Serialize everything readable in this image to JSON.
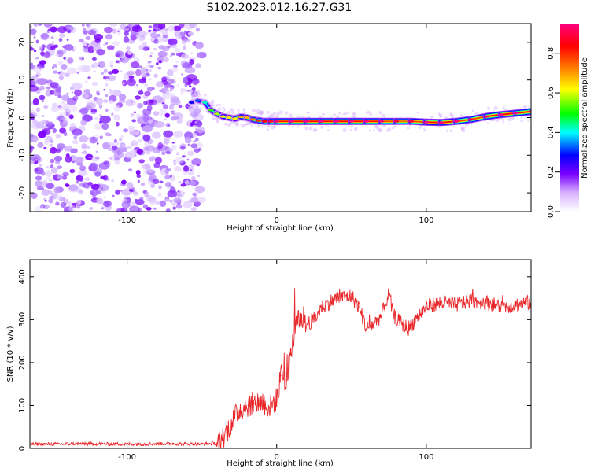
{
  "title": "S102.2023.012.16.27.G31",
  "chart_data": [
    {
      "type": "heatmap",
      "xlabel": "Height of straight line (km)",
      "ylabel": "Frequency (Hz)",
      "xlim": [
        -165,
        170
      ],
      "ylim": [
        -25,
        25
      ],
      "x_ticks": [
        -100,
        0,
        100
      ],
      "y_ticks": [
        -20,
        -10,
        0,
        10,
        20
      ],
      "noise_region": {
        "x_range": [
          -165,
          -50
        ],
        "y_range": [
          -25,
          25
        ]
      },
      "signal_ridge": {
        "x": [
          -57,
          -53,
          -48,
          -44,
          -40,
          -36,
          -32,
          -28,
          -24,
          -20,
          -16,
          -12,
          -8,
          -4,
          0,
          10,
          20,
          30,
          40,
          50,
          60,
          70,
          80,
          90,
          100,
          110,
          120,
          130,
          140,
          150,
          160,
          170
        ],
        "frequency": [
          4,
          4.5,
          4,
          2,
          1,
          0.3,
          0,
          -0.3,
          0.2,
          0,
          -0.5,
          -0.8,
          -1,
          -1,
          -1,
          -1,
          -1,
          -1,
          -1,
          -1,
          -1,
          -1,
          -1,
          -1,
          -1.2,
          -1.3,
          -1,
          -0.5,
          0.3,
          0.8,
          1.2,
          1.6
        ],
        "amplitude": [
          0.25,
          0.3,
          0.4,
          0.5,
          0.55,
          0.6,
          0.6,
          0.6,
          0.65,
          0.65,
          0.7,
          0.75,
          0.8,
          0.85,
          0.9,
          0.95,
          0.95,
          0.95,
          0.95,
          0.95,
          0.95,
          0.9,
          0.85,
          0.85,
          0.9,
          0.95,
          0.9,
          0.85,
          0.9,
          0.95,
          0.95,
          0.9
        ]
      },
      "colorbar": {
        "label": "Normalized spectral amplitude",
        "ticks": [
          0.0,
          0.2,
          0.4,
          0.6,
          0.8
        ],
        "tick_labels": [
          "0.0",
          "0.2",
          "0.4",
          "0.6",
          "0.8"
        ],
        "range": [
          0,
          0.95
        ],
        "colors": [
          "#ffffff",
          "#d9b3ff",
          "#7a00ff",
          "#0000ff",
          "#00ffff",
          "#00ff00",
          "#ffff00",
          "#ff8000",
          "#ff0000",
          "#ff0080"
        ]
      }
    },
    {
      "type": "line",
      "xlabel": "Height of straight line (km)",
      "ylabel": "SNR (10 * v/v)",
      "xlim": [
        -165,
        170
      ],
      "ylim": [
        0,
        440
      ],
      "x_ticks": [
        -100,
        0,
        100
      ],
      "y_ticks": [
        0,
        100,
        200,
        300,
        400
      ],
      "series": [
        {
          "color": "#e8282b",
          "x": [
            -165,
            -150,
            -130,
            -110,
            -90,
            -70,
            -50,
            -40,
            -35,
            -30,
            -25,
            -20,
            -15,
            -10,
            -5,
            0,
            3,
            6,
            10,
            13,
            16,
            20,
            25,
            30,
            40,
            50,
            55,
            60,
            65,
            70,
            75,
            78,
            82,
            88,
            95,
            100,
            105,
            110,
            120,
            130,
            140,
            150,
            160,
            170
          ],
          "values": [
            10,
            10,
            11,
            10,
            10,
            11,
            10,
            12,
            30,
            60,
            90,
            100,
            105,
            110,
            95,
            115,
            170,
            160,
            230,
            290,
            300,
            290,
            300,
            330,
            350,
            355,
            330,
            280,
            290,
            310,
            360,
            310,
            295,
            280,
            310,
            330,
            335,
            340,
            335,
            345,
            340,
            330,
            335,
            340
          ]
        }
      ]
    }
  ]
}
